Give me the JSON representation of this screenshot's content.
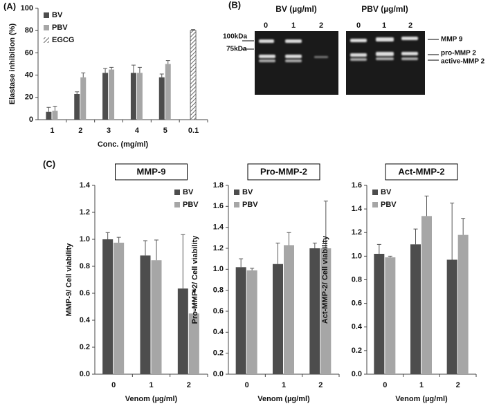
{
  "chart_data": [
    {
      "type": "bar",
      "panel": "(A)",
      "ylabel": "Elastase inhibition (%)",
      "xlabel": "Conc. (mg/ml)",
      "categories": [
        "1",
        "2",
        "3",
        "4",
        "5",
        "0.1"
      ],
      "series": [
        {
          "name": "BV",
          "color": "#4d4d4d",
          "values": [
            7,
            23,
            42,
            42,
            38,
            null
          ],
          "errors": [
            4,
            2,
            4,
            7,
            3,
            null
          ]
        },
        {
          "name": "PBV",
          "color": "#a6a6a6",
          "values": [
            8,
            38,
            45,
            42,
            50,
            null
          ],
          "errors": [
            4,
            4,
            2,
            5,
            3,
            null
          ]
        },
        {
          "name": "EGCG",
          "color": "#7a7a7a",
          "hatch": true,
          "values": [
            null,
            null,
            null,
            null,
            null,
            80
          ],
          "errors": [
            null,
            null,
            null,
            null,
            null,
            1
          ]
        }
      ],
      "ylim": [
        0,
        100
      ],
      "yticks": [
        0,
        20,
        40,
        60,
        80,
        100
      ]
    },
    {
      "type": "bar",
      "panel": "(C)",
      "title": "MMP-9",
      "ylabel": "MMP-9/ Cell viability",
      "xlabel": "Venom (µg/ml)",
      "categories": [
        "0",
        "1",
        "2"
      ],
      "annotation": "*",
      "series": [
        {
          "name": "BV",
          "color": "#4d4d4d",
          "values": [
            1.0,
            0.88,
            0.635
          ],
          "errors": [
            0.05,
            0.11,
            0.4
          ]
        },
        {
          "name": "PBV",
          "color": "#a6a6a6",
          "values": [
            0.975,
            0.845,
            0.45
          ],
          "errors": [
            0.04,
            0.15,
            0.12
          ]
        }
      ],
      "ylim": [
        0,
        1.4
      ],
      "yticks": [
        {
          "value": 0,
          "label": "0.0"
        },
        0.2,
        0.4,
        0.6,
        0.8,
        {
          "value": 1,
          "label": "1.0"
        },
        1.2,
        1.4
      ]
    },
    {
      "type": "bar",
      "title": "Pro-MMP-2",
      "ylabel": "Pro-MMP-2/ Cell viability",
      "xlabel": "Venom (µg/ml)",
      "categories": [
        "0",
        "1",
        "2"
      ],
      "series": [
        {
          "name": "BV",
          "color": "#4d4d4d",
          "values": [
            1.02,
            1.05,
            1.2
          ],
          "errors": [
            0.08,
            0.2,
            0.05
          ]
        },
        {
          "name": "PBV",
          "color": "#a6a6a6",
          "values": [
            0.99,
            1.23,
            1.2
          ],
          "errors": [
            0.02,
            0.12,
            0.45
          ]
        }
      ],
      "ylim": [
        0,
        1.8
      ],
      "yticks": [
        {
          "value": 0,
          "label": "0.0"
        },
        0.2,
        0.4,
        0.6,
        0.8,
        {
          "value": 1,
          "label": "1.0"
        },
        1.2,
        1.4,
        1.6,
        1.8
      ]
    },
    {
      "type": "bar",
      "title": "Act-MMP-2",
      "ylabel": "Act-MMP-2/ Cell viability",
      "xlabel": "Venom (µg/ml)",
      "categories": [
        "0",
        "1",
        "2"
      ],
      "series": [
        {
          "name": "BV",
          "color": "#4d4d4d",
          "values": [
            1.02,
            1.1,
            0.97
          ],
          "errors": [
            0.08,
            0.13,
            0.48
          ]
        },
        {
          "name": "PBV",
          "color": "#a6a6a6",
          "values": [
            0.99,
            1.34,
            1.18
          ],
          "errors": [
            0.01,
            0.17,
            0.14
          ]
        }
      ],
      "ylim": [
        0,
        1.6
      ],
      "yticks": [
        {
          "value": 0,
          "label": "0.0"
        },
        0.2,
        0.4,
        0.6,
        0.8,
        {
          "value": 1,
          "label": "1.0"
        },
        1.2,
        1.4,
        1.6
      ]
    }
  ],
  "gel": {
    "panel": "(B)",
    "groups": [
      "BV (µg/ml)",
      "PBV (µg/ml)"
    ],
    "lanes": [
      "0",
      "1",
      "2",
      "0",
      "1",
      "2"
    ],
    "markers": [
      "100kDa",
      "75kDa"
    ],
    "bands": [
      "MMP 9",
      "pro-MMP 2",
      "active-MMP 2"
    ]
  }
}
